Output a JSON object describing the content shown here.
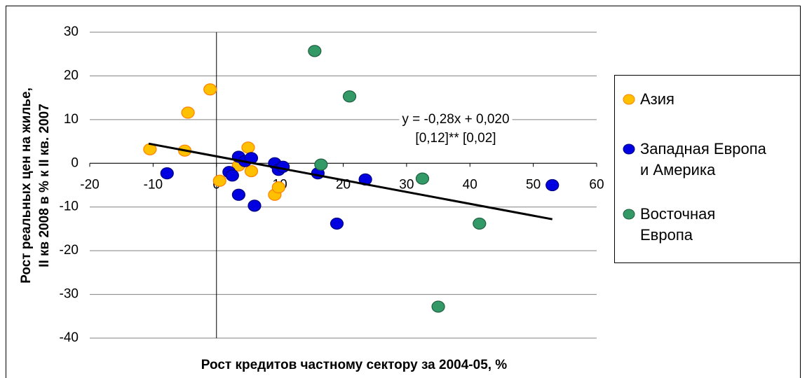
{
  "chart_data": {
    "type": "scatter",
    "xlabel": "Рост кредитов частному сектору за 2004-05, %",
    "ylabel": [
      "Рост реальных цен на жилье,",
      "II кв 2008 в % к II кв. 2007"
    ],
    "xlim": [
      -20,
      60
    ],
    "xticks": [
      -20,
      -10,
      0,
      10,
      20,
      30,
      40,
      50,
      60
    ],
    "ylim": [
      -40,
      30
    ],
    "yticks": [
      -40,
      -30,
      -20,
      -10,
      0,
      10,
      20,
      30
    ],
    "grid": true,
    "legend": "right",
    "series": [
      {
        "name": "Азия",
        "color": "#ffc000",
        "edge": "#ff8000",
        "x": [
          -10.5,
          -5,
          -4.5,
          -1,
          0.5,
          3.5,
          5,
          5.5,
          9.2,
          9.8
        ],
        "values": [
          3.2,
          2.9,
          11.6,
          16.9,
          -4,
          -0.5,
          3.6,
          -1.8,
          -7.2,
          -5.5
        ]
      },
      {
        "name": "Западная Европа\nи Америка",
        "color": "#0000e0",
        "edge": "#000080",
        "x": [
          -7.8,
          2,
          2.5,
          3.5,
          3.5,
          4.5,
          5.5,
          6,
          9.2,
          9.8,
          10.5,
          16,
          19,
          23.5,
          53
        ],
        "values": [
          -2.3,
          -2,
          -2.8,
          1.5,
          -7.2,
          0.5,
          1.2,
          -9.7,
          0,
          -1.5,
          -0.8,
          -2.3,
          -13.8,
          -3.7,
          -5
        ]
      },
      {
        "name": "Восточная\nЕвропа",
        "color": "#339966",
        "edge": "#1f5f3f",
        "x": [
          15.5,
          16.5,
          21,
          32.5,
          35,
          41.5
        ],
        "values": [
          25.7,
          -0.3,
          15.3,
          -3.5,
          -32.8,
          -13.8
        ]
      }
    ],
    "trendline": {
      "x": [
        -10.7,
        53
      ],
      "y": [
        4.5,
        -12.8
      ],
      "color": "#000000"
    },
    "annotations": [
      "y = -0,28x + 0,020",
      "[0,12]**   [0,02]"
    ]
  }
}
